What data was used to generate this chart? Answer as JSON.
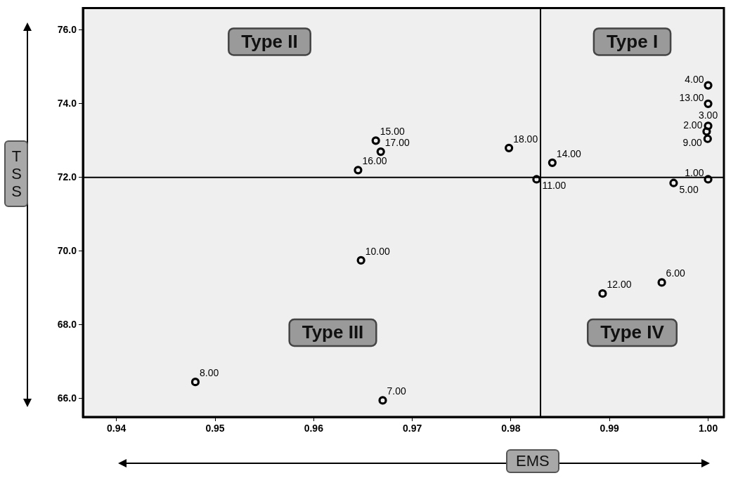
{
  "chart_data": {
    "type": "scatter",
    "xlabel": "EMS",
    "ylabel": "TSS",
    "series": [
      {
        "color": "#000000",
        "x": [
          1.0,
          0.99985,
          1.0,
          1.0,
          0.9965,
          0.9953,
          0.967,
          0.948,
          0.99995,
          0.9648,
          0.9826,
          0.9893,
          1.0,
          0.9842,
          0.9663,
          0.9645,
          0.9668,
          0.9798
        ],
        "values": [
          71.95,
          73.25,
          73.4,
          74.5,
          71.85,
          69.15,
          65.95,
          66.45,
          73.05,
          69.75,
          71.95,
          68.85,
          74.0,
          72.4,
          73.0,
          72.2,
          72.7,
          72.8
        ]
      }
    ],
    "marker": "circle",
    "xlim": [
      0.9366,
      1.0016
    ],
    "ylim": [
      65.5,
      76.6
    ],
    "xticks": [
      0.94,
      0.95,
      0.96,
      0.97,
      0.98,
      0.99,
      {
        "value": 1.0,
        "label": "1.00"
      }
    ],
    "yticks": [
      {
        "value": 66,
        "label": "66.0"
      },
      {
        "value": 68,
        "label": "68.0"
      },
      {
        "value": 70,
        "label": "70.0"
      },
      {
        "value": 72,
        "label": "72.0"
      },
      {
        "value": 74,
        "label": "74.0"
      },
      {
        "value": 76,
        "label": "76.0"
      }
    ],
    "grid": false,
    "legend": false,
    "ref_lines": [
      {
        "axis": "x",
        "value": 0.983,
        "color": "#000000"
      },
      {
        "axis": "y",
        "value": 72,
        "color": "#000000"
      }
    ],
    "annotations": [
      {
        "text": "1.00",
        "x": 1.0,
        "y": 71.95
      },
      {
        "text": "2.00",
        "x": 0.99985,
        "y": 73.25
      },
      {
        "text": "3.00",
        "x": 1.0,
        "y": 73.4
      },
      {
        "text": "4.00",
        "x": 1.0,
        "y": 74.5
      },
      {
        "text": "5.00",
        "x": 0.9965,
        "y": 71.85
      },
      {
        "text": "6.00",
        "x": 0.9953,
        "y": 69.15
      },
      {
        "text": "7.00",
        "x": 0.967,
        "y": 65.95
      },
      {
        "text": "8.00",
        "x": 0.948,
        "y": 66.45
      },
      {
        "text": "9.00",
        "x": 0.99995,
        "y": 73.05
      },
      {
        "text": "10.00",
        "x": 0.9648,
        "y": 69.75
      },
      {
        "text": "11.00",
        "x": 0.9826,
        "y": 71.95
      },
      {
        "text": "12.00",
        "x": 0.9893,
        "y": 68.85
      },
      {
        "text": "13.00",
        "x": 1.0,
        "y": 74.0
      },
      {
        "text": "14.00",
        "x": 0.9842,
        "y": 72.4
      },
      {
        "text": "15.00",
        "x": 0.9663,
        "y": 73.0
      },
      {
        "text": "16.00",
        "x": 0.9645,
        "y": 72.2
      },
      {
        "text": "17.00",
        "x": 0.9668,
        "y": 72.7
      },
      {
        "text": "18.00",
        "x": 0.9798,
        "y": 72.8
      },
      "Type II",
      "Type I",
      "Type III",
      "Type IV"
    ]
  }
}
